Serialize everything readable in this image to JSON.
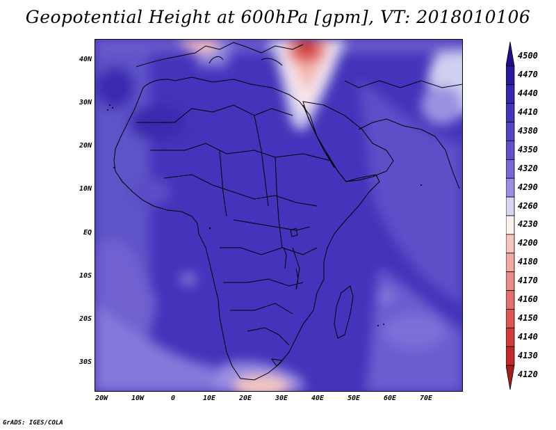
{
  "title": "Geopotential Height at 600hPa [gpm], VT: 2018010106",
  "credit": "GrADS: IGES/COLA",
  "map": {
    "variable": "Geopotential Height",
    "level": "600hPa",
    "units": "gpm",
    "valid_time": "2018010106",
    "lat_labels": [
      "40N",
      "30N",
      "20N",
      "10N",
      "EQ",
      "10S",
      "20S",
      "30S"
    ],
    "lon_labels": [
      "20W",
      "10W",
      "0",
      "10E",
      "20E",
      "30E",
      "40E",
      "50E",
      "60E",
      "70E"
    ]
  },
  "colorbar": {
    "labels": [
      "4500",
      "4470",
      "4440",
      "4410",
      "4380",
      "4350",
      "4320",
      "4290",
      "4260",
      "4230",
      "4200",
      "4180",
      "4170",
      "4160",
      "4150",
      "4140",
      "4130",
      "4120"
    ],
    "colors": [
      "#1f0f8c",
      "#2a1a9e",
      "#3527ad",
      "#4434bb",
      "#5244c4",
      "#6152cc",
      "#7868d6",
      "#9a8ee2",
      "#d6d6f4",
      "#fdf1ee",
      "#f6c5c0",
      "#f2a9a3",
      "#ea8c86",
      "#e4706c",
      "#de5551",
      "#d23c3a",
      "#c22a29",
      "#a81c1c"
    ]
  }
}
